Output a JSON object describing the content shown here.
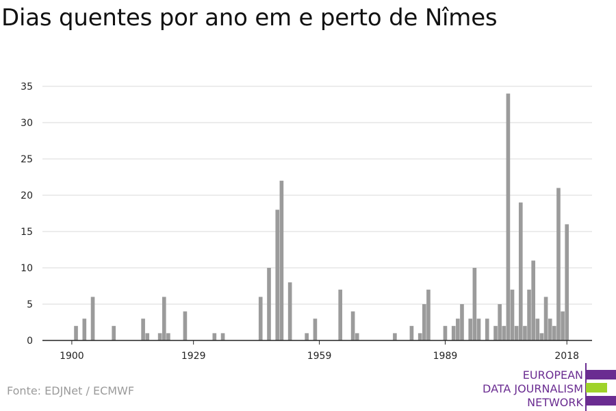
{
  "title": "Dias quentes por ano em e perto de Nîmes",
  "source": "Fonte: EDJNet / ECMWF",
  "logo": {
    "lines": [
      "EUROPEAN",
      "DATA JOURNALISM",
      "NETWORK"
    ],
    "colors": [
      "#6a2c91",
      "#9fd32a",
      "#6a2c91"
    ]
  },
  "colors": {
    "bar": "#9b9b9b",
    "grid": "#d9d9d9",
    "axis": "#222222"
  },
  "chart_data": {
    "type": "bar",
    "title": "Dias quentes por ano em e perto de Nîmes",
    "xlabel": "",
    "ylabel": "",
    "ylim": [
      0,
      35
    ],
    "yticks": [
      0,
      5,
      10,
      15,
      20,
      25,
      30,
      35
    ],
    "xticks": [
      1900,
      1929,
      1959,
      1989,
      2018
    ],
    "xrange": [
      1893,
      2024
    ],
    "grid": true,
    "x": [
      1901,
      1903,
      1905,
      1910,
      1917,
      1918,
      1921,
      1922,
      1923,
      1927,
      1934,
      1936,
      1945,
      1947,
      1949,
      1950,
      1952,
      1956,
      1958,
      1964,
      1967,
      1968,
      1977,
      1981,
      1983,
      1984,
      1985,
      1989,
      1991,
      1992,
      1993,
      1995,
      1996,
      1997,
      1999,
      2001,
      2002,
      2003,
      2004,
      2005,
      2006,
      2007,
      2008,
      2009,
      2010,
      2011,
      2012,
      2013,
      2014,
      2015,
      2016,
      2017,
      2018
    ],
    "values": [
      2,
      3,
      6,
      2,
      3,
      1,
      1,
      6,
      1,
      4,
      1,
      1,
      6,
      10,
      18,
      22,
      8,
      1,
      3,
      7,
      4,
      1,
      1,
      2,
      1,
      5,
      7,
      2,
      2,
      3,
      5,
      3,
      10,
      3,
      3,
      2,
      5,
      2,
      34,
      7,
      2,
      19,
      2,
      7,
      11,
      3,
      1,
      6,
      3,
      2,
      21,
      4,
      16
    ]
  }
}
